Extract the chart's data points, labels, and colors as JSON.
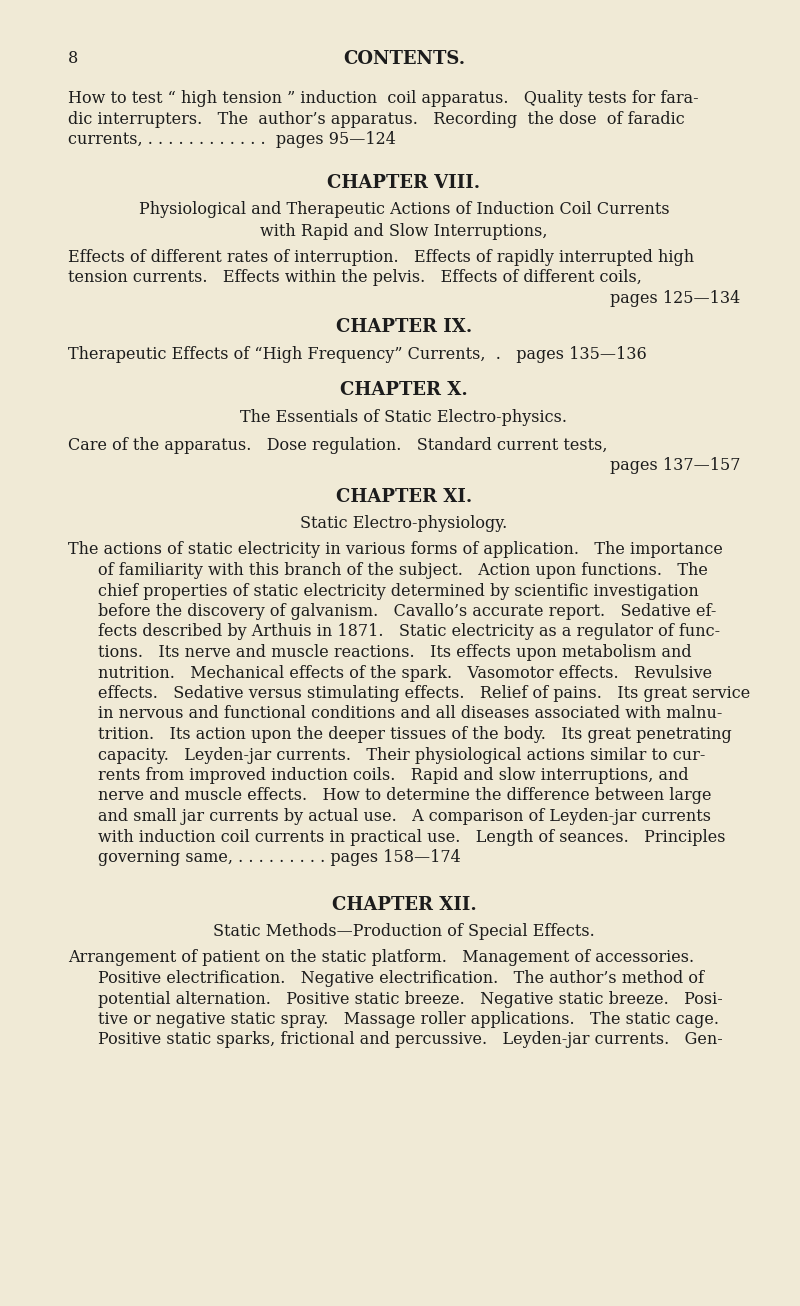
{
  "bg_color": "#f0ead6",
  "text_color": "#1c1c1c",
  "page_number": "8",
  "header": "CONTENTS.",
  "body1_lines": [
    "How to test “ high tension ” induction  coil apparatus.   Quality tests for fara-",
    "dic interrupters.   The  author’s apparatus.   Recording  the dose  of faradic",
    "currents, . . . . . . . . . . . .  pages 95—124"
  ],
  "ch8_heading": "CHAPTER VIII.",
  "ch8_title_line1": "Physiological and Therapeutic Actions of Induction Coil Currents",
  "ch8_title_line2": "with Rapid and Slow Interruptions,",
  "ch8_body_lines": [
    "Effects of different rates of interruption.   Effects of rapidly interrupted high",
    "tension currents.   Effects within the pelvis.   Effects of different coils,"
  ],
  "ch8_pages": "pages 125—134",
  "ch9_heading": "CHAPTER IX.",
  "ch9_body": "Therapeutic Effects of “High Frequency” Currents,  .   pages 135—136",
  "ch10_heading": "CHAPTER X.",
  "ch10_subtitle": "The Essentials of Static Electro-physics.",
  "ch10_body": "Care of the apparatus.   Dose regulation.   Standard current tests,",
  "ch10_pages": "pages 137—157",
  "ch11_heading": "CHAPTER XI.",
  "ch11_subtitle": "Static Electro-physiology.",
  "ch11_lines": [
    "The actions of static electricity in various forms of application.   The importance",
    "of familiarity with this branch of the subject.   Action upon functions.   The",
    "chief properties of static electricity determined by scientific investigation",
    "before the discovery of galvanism.   Cavallo’s accurate report.   Sedative ef-",
    "fects described by Arthuis in 1871.   Static electricity as a regulator of func-",
    "tions.   Its nerve and muscle reactions.   Its effects upon metabolism and",
    "nutrition.   Mechanical effects of the spark.   Vasomotor effects.   Revulsive",
    "effects.   Sedative versus stimulating effects.   Relief of pains.   Its great service",
    "in nervous and functional conditions and all diseases associated with malnu-",
    "trition.   Its action upon the deeper tissues of the body.   Its great penetrating",
    "capacity.   Leyden-jar currents.   Their physiological actions similar to cur-",
    "rents from improved induction coils.   Rapid and slow interruptions, and",
    "nerve and muscle effects.   How to determine the difference between large",
    "and small jar currents by actual use.   A comparison of Leyden-jar currents",
    "with induction coil currents in practical use.   Length of seances.   Principles",
    "governing same, . . . . . . . . . pages 158—174"
  ],
  "ch12_heading": "CHAPTER XII.",
  "ch12_subtitle": "Static Methods—Production of Special Effects.",
  "ch12_lines": [
    "Arrangement of patient on the static platform.   Management of accessories.",
    "Positive electrification.   Negative electrification.   The author’s method of",
    "potential alternation.   Positive static breeze.   Negative static breeze.   Posi-",
    "tive or negative static spray.   Massage roller applications.   The static cage.",
    "Positive static sparks, frictional and percussive.   Leyden-jar currents.   Gen-"
  ]
}
